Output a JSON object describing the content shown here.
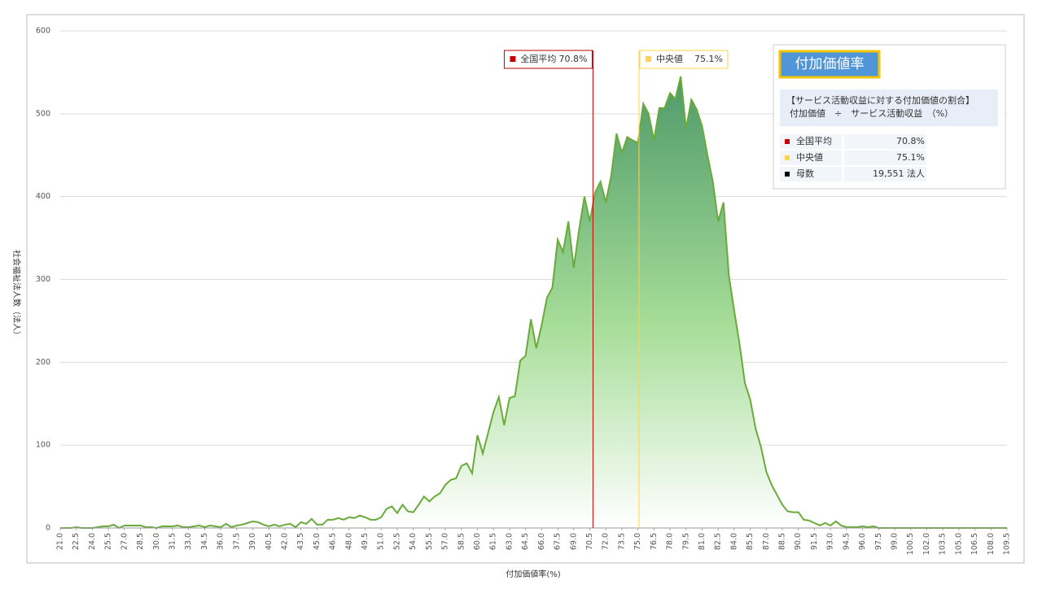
{
  "chart_data": {
    "type": "area",
    "xlabel": "付加価値率(%)",
    "ylabel": "社会福祉法人数（法人）",
    "x": [
      21.0,
      21.5,
      22.0,
      22.5,
      23.0,
      23.5,
      24.0,
      24.5,
      25.0,
      25.5,
      26.0,
      26.5,
      27.0,
      27.5,
      28.0,
      28.5,
      29.0,
      29.5,
      30.0,
      30.5,
      31.0,
      31.5,
      32.0,
      32.5,
      33.0,
      33.5,
      34.0,
      34.5,
      35.0,
      35.5,
      36.0,
      36.5,
      37.0,
      37.5,
      38.0,
      38.5,
      39.0,
      39.5,
      40.0,
      40.5,
      41.0,
      41.5,
      42.0,
      42.5,
      43.0,
      43.5,
      44.0,
      44.5,
      45.0,
      45.5,
      46.0,
      46.5,
      47.0,
      47.5,
      48.0,
      48.5,
      49.0,
      49.5,
      50.0,
      50.5,
      51.0,
      51.5,
      52.0,
      52.5,
      53.0,
      53.5,
      54.0,
      54.5,
      55.0,
      55.5,
      56.0,
      56.5,
      57.0,
      57.5,
      58.0,
      58.5,
      59.0,
      59.5,
      60.0,
      60.5,
      61.0,
      61.5,
      62.0,
      62.5,
      63.0,
      63.5,
      64.0,
      64.5,
      65.0,
      65.5,
      66.0,
      66.5,
      67.0,
      67.5,
      68.0,
      68.5,
      69.0,
      69.5,
      70.0,
      70.5,
      71.0,
      71.5,
      72.0,
      72.5,
      73.0,
      73.5,
      74.0,
      74.5,
      75.0,
      75.5,
      76.0,
      76.5,
      77.0,
      77.5,
      78.0,
      78.5,
      79.0,
      79.5,
      80.0,
      80.5,
      81.0,
      81.5,
      82.0,
      82.5,
      83.0,
      83.5,
      84.0,
      84.5,
      85.0,
      85.5,
      86.0,
      86.5,
      87.0,
      87.5,
      88.0,
      88.5,
      89.0,
      89.5,
      90.0,
      90.5,
      91.0,
      91.5,
      92.0,
      92.5,
      93.0,
      93.5,
      94.0,
      94.5,
      95.0,
      95.5,
      96.0,
      96.5,
      97.0,
      97.5,
      98.0,
      98.5,
      99.0,
      99.5,
      100.0,
      100.5,
      101.0,
      101.5,
      102.0,
      102.5,
      103.0,
      103.5,
      104.0,
      104.5,
      105.0,
      105.5,
      106.0,
      106.5,
      107.0,
      107.5,
      108.0,
      108.5,
      109.0,
      109.5
    ],
    "values": [
      0,
      0,
      0,
      1,
      0,
      0,
      0,
      1,
      2,
      2,
      4,
      0,
      3,
      3,
      3,
      3,
      1,
      1,
      0,
      2,
      2,
      2,
      3,
      1,
      1,
      2,
      3,
      1,
      3,
      2,
      1,
      5,
      1,
      3,
      4,
      6,
      8,
      7,
      4,
      2,
      4,
      2,
      4,
      5,
      1,
      7,
      5,
      11,
      4,
      4,
      10,
      10,
      12,
      10,
      13,
      12,
      15,
      13,
      10,
      10,
      13,
      23,
      26,
      18,
      28,
      20,
      19,
      28,
      38,
      32,
      38,
      42,
      52,
      58,
      60,
      75,
      78,
      66,
      112,
      90,
      115,
      140,
      158,
      124,
      157,
      159,
      202,
      208,
      252,
      217,
      245,
      278,
      290,
      348,
      333,
      370,
      314,
      360,
      400,
      370,
      405,
      418,
      393,
      425,
      476,
      453,
      472,
      468,
      465,
      512,
      500,
      468,
      507,
      507,
      525,
      518,
      545,
      482,
      517,
      505,
      485,
      450,
      418,
      370,
      393,
      305,
      262,
      222,
      175,
      155,
      120,
      98,
      68,
      52,
      40,
      28,
      20,
      19,
      19,
      10,
      9,
      6,
      3,
      6,
      3,
      8,
      3,
      1,
      1,
      1,
      2,
      1,
      2,
      0,
      0,
      0,
      0,
      0,
      0,
      0,
      0,
      0,
      0,
      0,
      0,
      0,
      0,
      0,
      0,
      0,
      0,
      0,
      0,
      0,
      0,
      0,
      0,
      0
    ],
    "color": "#6aaa3a",
    "xlim": [
      21.0,
      109.5
    ],
    "xticks": [
      {
        "value": 21,
        "label": "21.0"
      },
      22.5,
      {
        "value": 24,
        "label": "24.0"
      },
      25.5,
      {
        "value": 27,
        "label": "27.0"
      },
      28.5,
      {
        "value": 30,
        "label": "30.0"
      },
      31.5,
      {
        "value": 33,
        "label": "33.0"
      },
      34.5,
      {
        "value": 36,
        "label": "36.0"
      },
      37.5,
      {
        "value": 39,
        "label": "39.0"
      },
      40.5,
      {
        "value": 42,
        "label": "42.0"
      },
      43.5,
      {
        "value": 45,
        "label": "45.0"
      },
      46.5,
      {
        "value": 48,
        "label": "48.0"
      },
      49.5,
      {
        "value": 51,
        "label": "51.0"
      },
      52.5,
      {
        "value": 54,
        "label": "54.0"
      },
      55.5,
      {
        "value": 57,
        "label": "57.0"
      },
      58.5,
      {
        "value": 60,
        "label": "60.0"
      },
      61.5,
      {
        "value": 63,
        "label": "63.0"
      },
      64.5,
      {
        "value": 66,
        "label": "66.0"
      },
      67.5,
      {
        "value": 69,
        "label": "69.0"
      },
      70.5,
      {
        "value": 72,
        "label": "72.0"
      },
      73.5,
      {
        "value": 75,
        "label": "75.0"
      },
      76.5,
      {
        "value": 78,
        "label": "78.0"
      },
      79.5,
      {
        "value": 81,
        "label": "81.0"
      },
      82.5,
      {
        "value": 84,
        "label": "84.0"
      },
      85.5,
      {
        "value": 87,
        "label": "87.0"
      },
      88.5,
      {
        "value": 90,
        "label": "90.0"
      },
      91.5,
      {
        "value": 93,
        "label": "93.0"
      },
      94.5,
      {
        "value": 96,
        "label": "96.0"
      },
      97.5,
      {
        "value": 99,
        "label": "99.0"
      },
      100.5,
      {
        "value": 102,
        "label": "102.0"
      },
      103.5,
      {
        "value": 105,
        "label": "105.0"
      },
      106.5,
      {
        "value": 108,
        "label": "108.0"
      },
      109.5
    ],
    "ylim": [
      0,
      600
    ],
    "yticks": [
      0,
      100,
      200,
      300,
      400,
      500,
      600
    ],
    "grid": true,
    "annotations": [
      {
        "label": "全国平均",
        "value": 70.8,
        "value_label": "70.8%",
        "color": "#c00000"
      },
      {
        "label": "中央値",
        "value": 75.1,
        "value_label": "75.1%",
        "color": "#ffd34e"
      }
    ],
    "info_box": {
      "title": "付加価値率",
      "formula": [
        "【サービス活動収益に対する付加価値の割合】",
        "付加価値　÷　サービス活動収益　（%）"
      ],
      "count_label": "母数",
      "count_value": "19,551  法人",
      "count_color": "#000000"
    }
  }
}
